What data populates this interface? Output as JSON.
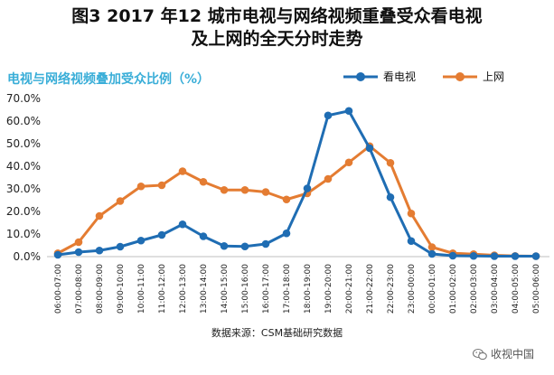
{
  "title_line1": "图3 2017 年12 城市电视与网络视频重叠受众看电视",
  "title_line2": "及上网的全天分时走势",
  "source": "数据来源：CSM基础研究数据",
  "watermark": "收视中国",
  "watermark_icon": "wechat-icon",
  "colors": {
    "tv": "#1f6db3",
    "web": "#e47c32",
    "subtitle": "#3aaed8"
  },
  "chart_data": {
    "type": "line",
    "subtitle": "电视与网络视频叠加受众比例（%）",
    "categories": [
      "06:00-07:00",
      "07:00-08:00",
      "08:00-09:00",
      "09:00-10:00",
      "10:00-11:00",
      "11:00-12:00",
      "12:00-13:00",
      "13:00-14:00",
      "14:00-15:00",
      "15:00-16:00",
      "16:00-17:00",
      "17:00-18:00",
      "18:00-19:00",
      "19:00-20:00",
      "20:00-21:00",
      "21:00-22:00",
      "22:00-23:00",
      "23:00-00:00",
      "00:00-01:00",
      "01:00-02:00",
      "02:00-03:00",
      "03:00-04:00",
      "04:00-05:00",
      "05:00-06:00"
    ],
    "series": [
      {
        "name": "看电视",
        "values": [
          0.8,
          2.0,
          2.7,
          4.4,
          7.1,
          9.6,
          14.3,
          9.0,
          4.7,
          4.5,
          5.6,
          10.3,
          30.2,
          62.5,
          64.5,
          48.0,
          26.3,
          6.9,
          1.2,
          0.4,
          0.3,
          0.2,
          0.2,
          0.2
        ]
      },
      {
        "name": "上网",
        "values": [
          1.5,
          6.4,
          18.0,
          24.6,
          31.1,
          31.6,
          37.8,
          33.1,
          29.5,
          29.5,
          28.6,
          25.3,
          28.0,
          34.4,
          41.7,
          48.9,
          41.5,
          19.1,
          4.2,
          1.5,
          1.1,
          0.6,
          0.3,
          0.2
        ]
      }
    ],
    "yticks": [
      "0.0%",
      "10.0%",
      "20.0%",
      "30.0%",
      "40.0%",
      "50.0%",
      "60.0%",
      "70.0%"
    ],
    "ylim": [
      0,
      70
    ],
    "xlabel": "",
    "ylabel": "",
    "legend": "top-right"
  }
}
